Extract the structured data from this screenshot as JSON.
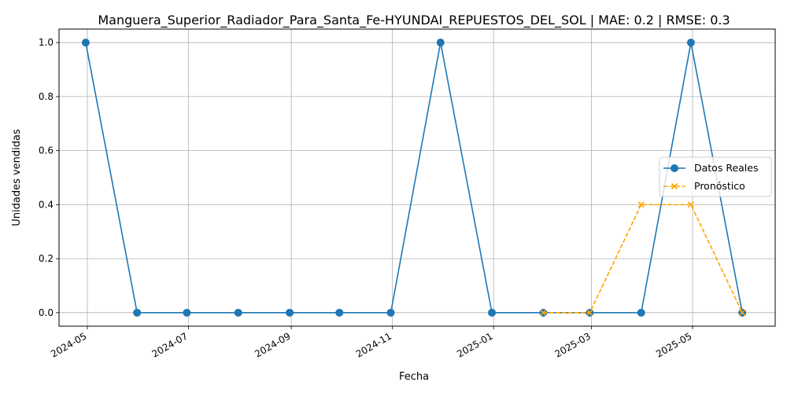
{
  "chart_data": {
    "type": "line",
    "title": "Manguera_Superior_Radiador_Para_Santa_Fe-HYUNDAI_REPUESTOS_DEL_SOL | MAE: 0.2 | RMSE: 0.3",
    "xlabel": "Fecha",
    "ylabel": "Unidades vendidas",
    "x_ticks": [
      "2024-05",
      "2024-07",
      "2024-09",
      "2024-11",
      "2025-01",
      "2025-03",
      "2025-05"
    ],
    "y_ticks": [
      "0.0",
      "0.2",
      "0.4",
      "0.6",
      "0.8",
      "1.0"
    ],
    "ylim": [
      -0.05,
      1.05
    ],
    "grid": true,
    "legend_position": "center-right",
    "series": [
      {
        "name": "Datos Reales",
        "color": "#1f77b4",
        "marker": "circle",
        "linestyle": "solid",
        "x": [
          "2024-04-30",
          "2024-05-31",
          "2024-06-30",
          "2024-07-31",
          "2024-08-31",
          "2024-09-30",
          "2024-10-31",
          "2024-11-30",
          "2024-12-31",
          "2025-01-31",
          "2025-02-28",
          "2025-03-31",
          "2025-04-30",
          "2025-05-31"
        ],
        "values": [
          1,
          0,
          0,
          0,
          0,
          0,
          0,
          1,
          0,
          0,
          0,
          0,
          1,
          0
        ]
      },
      {
        "name": "Pronóstico",
        "color": "#ffa500",
        "marker": "x",
        "linestyle": "dashed",
        "x": [
          "2025-01-31",
          "2025-02-28",
          "2025-03-31",
          "2025-04-30",
          "2025-05-31"
        ],
        "values": [
          0,
          0,
          0.4,
          0.4,
          0
        ]
      }
    ]
  }
}
